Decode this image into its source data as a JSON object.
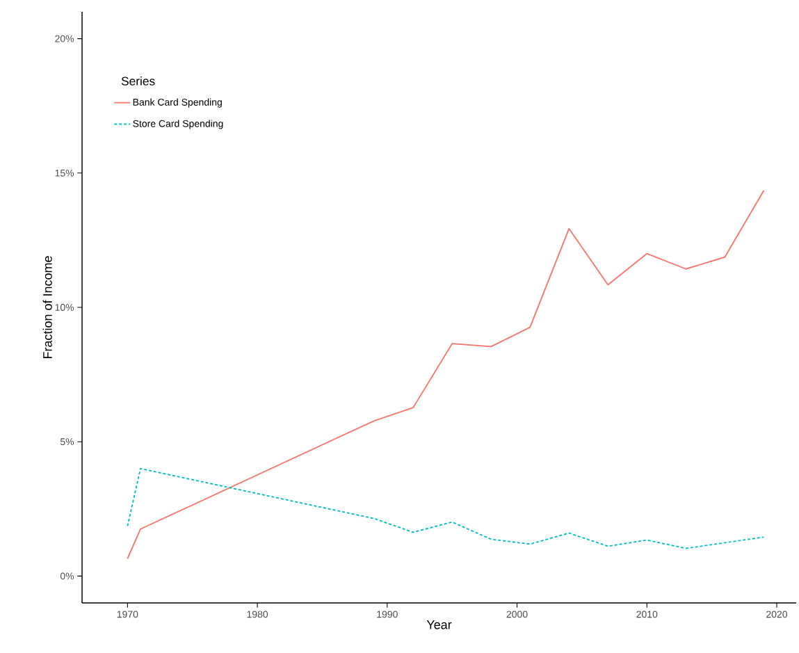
{
  "chart_data": {
    "type": "line",
    "xlabel": "Year",
    "ylabel": "Fraction of Income",
    "legend_title": "Series",
    "legend": "top left",
    "grid": false,
    "x": [
      1970,
      1971,
      1989,
      1992,
      1995,
      1998,
      2001,
      2004,
      2007,
      2010,
      2013,
      2016,
      2019
    ],
    "series": [
      {
        "name": "Bank Card Spending",
        "color": "#f8766d",
        "line_style": "solid",
        "values": [
          0.65,
          1.75,
          5.78,
          6.27,
          8.65,
          8.54,
          9.26,
          12.93,
          10.84,
          12.0,
          11.43,
          11.87,
          14.35
        ]
      },
      {
        "name": "Store Card Spending",
        "color": "#00bfc4",
        "line_style": "dashed",
        "values": [
          1.86,
          4.0,
          2.14,
          1.63,
          2.01,
          1.37,
          1.19,
          1.6,
          1.11,
          1.34,
          1.03,
          1.24,
          1.45
        ]
      }
    ],
    "xlim": [
      1966.5,
      2021.5
    ],
    "ylim": [
      -1,
      21
    ],
    "xticks": [
      1970,
      1980,
      1990,
      2000,
      2010,
      2020
    ],
    "yticks": [
      {
        "value": 0,
        "label": "0%"
      },
      {
        "value": 5,
        "label": "5%"
      },
      {
        "value": 10,
        "label": "10%"
      },
      {
        "value": 15,
        "label": "15%"
      },
      {
        "value": 20,
        "label": "20%"
      }
    ]
  }
}
